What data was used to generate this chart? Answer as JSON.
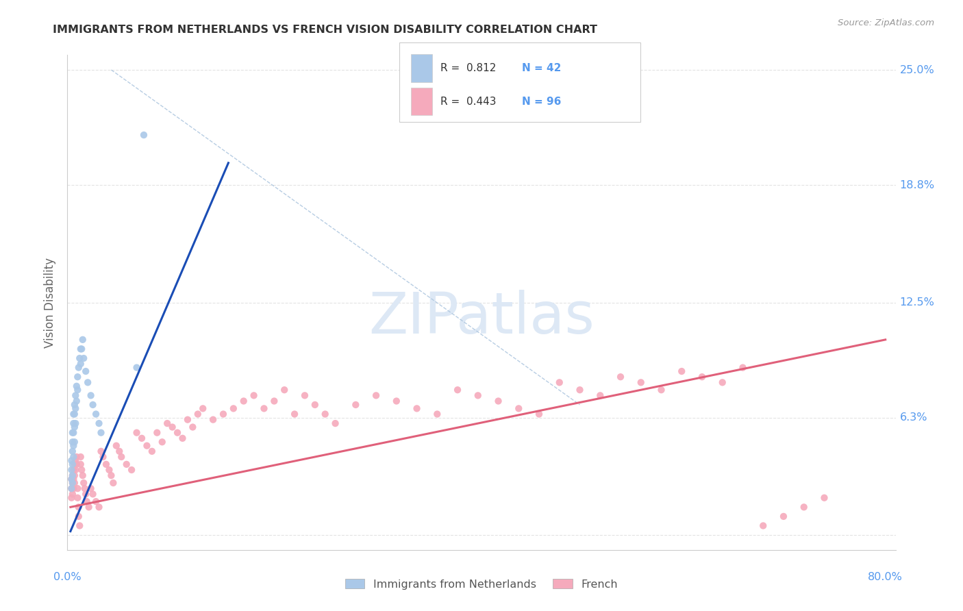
{
  "title": "IMMIGRANTS FROM NETHERLANDS VS FRENCH VISION DISABILITY CORRELATION CHART",
  "source": "Source: ZipAtlas.com",
  "ylabel_label": "Vision Disability",
  "xlim": [
    -0.003,
    0.81
  ],
  "ylim": [
    -0.008,
    0.258
  ],
  "ytick_vals": [
    0.0,
    0.063,
    0.125,
    0.188,
    0.25
  ],
  "xtick_vals": [
    0.0,
    0.1,
    0.2,
    0.3,
    0.4,
    0.5,
    0.6,
    0.7,
    0.8
  ],
  "ytick_labels": [
    "",
    "6.3%",
    "12.5%",
    "18.8%",
    "25.0%"
  ],
  "xtick_label_left": "0.0%",
  "xtick_label_right": "80.0%",
  "legend_r_blue": "0.812",
  "legend_n_blue": "42",
  "legend_r_pink": "0.443",
  "legend_n_pink": "96",
  "legend_label_blue": "Immigrants from Netherlands",
  "legend_label_pink": "French",
  "blue_dot_color": "#aac8e8",
  "pink_dot_color": "#f5aabc",
  "line_blue_color": "#1a4db5",
  "line_pink_color": "#e0607a",
  "dashed_color": "#b0c8e0",
  "watermark_text": "ZIPatlas",
  "watermark_color": "#dde8f5",
  "title_color": "#333333",
  "source_color": "#999999",
  "right_label_color": "#5599ee",
  "background_color": "#ffffff",
  "grid_color": "#dddddd",
  "blue_scatter_x": [
    0.001,
    0.001,
    0.001,
    0.001,
    0.002,
    0.002,
    0.002,
    0.002,
    0.002,
    0.002,
    0.003,
    0.003,
    0.003,
    0.003,
    0.003,
    0.004,
    0.004,
    0.004,
    0.004,
    0.005,
    0.005,
    0.005,
    0.006,
    0.006,
    0.007,
    0.007,
    0.008,
    0.009,
    0.01,
    0.01,
    0.011,
    0.012,
    0.013,
    0.015,
    0.017,
    0.02,
    0.022,
    0.025,
    0.028,
    0.03,
    0.065,
    0.072
  ],
  "blue_scatter_y": [
    0.04,
    0.035,
    0.03,
    0.025,
    0.055,
    0.05,
    0.045,
    0.038,
    0.032,
    0.028,
    0.065,
    0.06,
    0.055,
    0.048,
    0.042,
    0.07,
    0.065,
    0.058,
    0.05,
    0.075,
    0.068,
    0.06,
    0.08,
    0.072,
    0.085,
    0.078,
    0.09,
    0.095,
    0.1,
    0.092,
    0.1,
    0.105,
    0.095,
    0.088,
    0.082,
    0.075,
    0.07,
    0.065,
    0.06,
    0.055,
    0.09,
    0.215
  ],
  "pink_scatter_x": [
    0.001,
    0.001,
    0.001,
    0.002,
    0.002,
    0.002,
    0.003,
    0.003,
    0.003,
    0.004,
    0.004,
    0.004,
    0.005,
    0.005,
    0.006,
    0.006,
    0.007,
    0.007,
    0.008,
    0.008,
    0.009,
    0.01,
    0.01,
    0.011,
    0.012,
    0.013,
    0.014,
    0.015,
    0.016,
    0.018,
    0.02,
    0.022,
    0.025,
    0.028,
    0.03,
    0.032,
    0.035,
    0.038,
    0.04,
    0.042,
    0.045,
    0.048,
    0.05,
    0.055,
    0.06,
    0.065,
    0.07,
    0.075,
    0.08,
    0.085,
    0.09,
    0.095,
    0.1,
    0.105,
    0.11,
    0.115,
    0.12,
    0.125,
    0.13,
    0.14,
    0.15,
    0.16,
    0.17,
    0.18,
    0.19,
    0.2,
    0.21,
    0.22,
    0.23,
    0.24,
    0.25,
    0.26,
    0.28,
    0.3,
    0.32,
    0.34,
    0.36,
    0.38,
    0.4,
    0.42,
    0.44,
    0.46,
    0.48,
    0.5,
    0.52,
    0.54,
    0.56,
    0.58,
    0.6,
    0.62,
    0.64,
    0.66,
    0.68,
    0.7,
    0.72,
    0.74
  ],
  "pink_scatter_y": [
    0.03,
    0.025,
    0.02,
    0.032,
    0.028,
    0.022,
    0.035,
    0.03,
    0.025,
    0.038,
    0.032,
    0.028,
    0.04,
    0.035,
    0.042,
    0.038,
    0.025,
    0.02,
    0.015,
    0.01,
    0.005,
    0.042,
    0.038,
    0.035,
    0.032,
    0.028,
    0.025,
    0.022,
    0.018,
    0.015,
    0.025,
    0.022,
    0.018,
    0.015,
    0.045,
    0.042,
    0.038,
    0.035,
    0.032,
    0.028,
    0.048,
    0.045,
    0.042,
    0.038,
    0.035,
    0.055,
    0.052,
    0.048,
    0.045,
    0.055,
    0.05,
    0.06,
    0.058,
    0.055,
    0.052,
    0.062,
    0.058,
    0.065,
    0.068,
    0.062,
    0.065,
    0.068,
    0.072,
    0.075,
    0.068,
    0.072,
    0.078,
    0.065,
    0.075,
    0.07,
    0.065,
    0.06,
    0.07,
    0.075,
    0.072,
    0.068,
    0.065,
    0.078,
    0.075,
    0.072,
    0.068,
    0.065,
    0.082,
    0.078,
    0.075,
    0.085,
    0.082,
    0.078,
    0.088,
    0.085,
    0.082,
    0.09,
    0.005,
    0.01,
    0.015,
    0.02
  ],
  "blue_line_x": [
    0.0,
    0.155
  ],
  "blue_line_y": [
    0.002,
    0.2
  ],
  "pink_line_x": [
    0.0,
    0.8
  ],
  "pink_line_y": [
    0.015,
    0.105
  ],
  "dashed_line_x": [
    0.04,
    0.5
  ],
  "dashed_line_y": [
    0.25,
    0.07
  ]
}
